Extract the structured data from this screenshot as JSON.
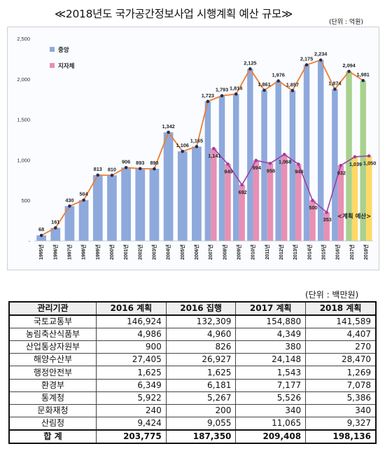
{
  "title": "≪2018년도 국가공간정보사업 시행계획 예산 규모≫",
  "unit_note": "(단위 : 억원)",
  "chart_data": {
    "type": "bar",
    "categories": [
      "1995년",
      "1996년",
      "1997년",
      "1998년",
      "1999년",
      "2000년",
      "2001년",
      "2002년",
      "2003년",
      "2004년",
      "2005년",
      "2006년",
      "2007년",
      "2008년",
      "2009년",
      "2010년",
      "2011년",
      "2012년",
      "2013년",
      "2014년",
      "2015년",
      "2016년",
      "2017년",
      "2018년"
    ],
    "series": [
      {
        "name": "중앙",
        "color": "#8ea9db",
        "values": [
          68,
          161,
          430,
          504,
          813,
          810,
          906,
          893,
          890,
          1342,
          1106,
          1165,
          1723,
          1793,
          1814,
          2125,
          1861,
          1976,
          1857,
          2175,
          2234,
          1874,
          2094,
          1981
        ]
      },
      {
        "name": "지자체",
        "color": "#e88fb4",
        "values": [
          null,
          null,
          null,
          null,
          null,
          null,
          null,
          null,
          null,
          null,
          null,
          null,
          1141,
          949,
          692,
          994,
          958,
          1068,
          948,
          500,
          353,
          932,
          1039,
          1050
        ]
      }
    ],
    "plan_colors": {
      "central": "#a9d18e",
      "local": "#ffd966"
    },
    "line_colors": {
      "central": "#ed7d31",
      "local": "#9e3fa0"
    },
    "plan_label": "<계획 예산>",
    "yticks": [
      0,
      500,
      1000,
      1500,
      2000,
      2500
    ],
    "ytick_labels": [
      "-",
      "500",
      "1,000",
      "1,500",
      "2,000",
      "2,500"
    ],
    "ylim": [
      0,
      2500
    ],
    "grid": false,
    "legend": "top-left"
  },
  "table": {
    "unit": "(단위 : 백만원)",
    "headers": [
      "관리기관",
      "2016 계획",
      "2016 집행",
      "2017 계획",
      "2018 계획"
    ],
    "rows": [
      [
        "국토교통부",
        "146,924",
        "132,309",
        "154,880",
        "141,589"
      ],
      [
        "농림축산식품부",
        "4,986",
        "4,960",
        "4,349",
        "4,407"
      ],
      [
        "산업통상자원부",
        "900",
        "826",
        "380",
        "270"
      ],
      [
        "해양수산부",
        "27,405",
        "26,927",
        "24,148",
        "28,470"
      ],
      [
        "행정안전부",
        "1,625",
        "1,625",
        "1,543",
        "1,269"
      ],
      [
        "환경부",
        "6,349",
        "6,181",
        "7,177",
        "7,078"
      ],
      [
        "통계청",
        "5,922",
        "5,267",
        "5,526",
        "5,386"
      ],
      [
        "문화재청",
        "240",
        "200",
        "340",
        "340"
      ],
      [
        "산림청",
        "9,424",
        "9,055",
        "11,065",
        "9,327"
      ]
    ],
    "total": [
      "합  계",
      "203,775",
      "187,350",
      "209,408",
      "198,136"
    ]
  }
}
